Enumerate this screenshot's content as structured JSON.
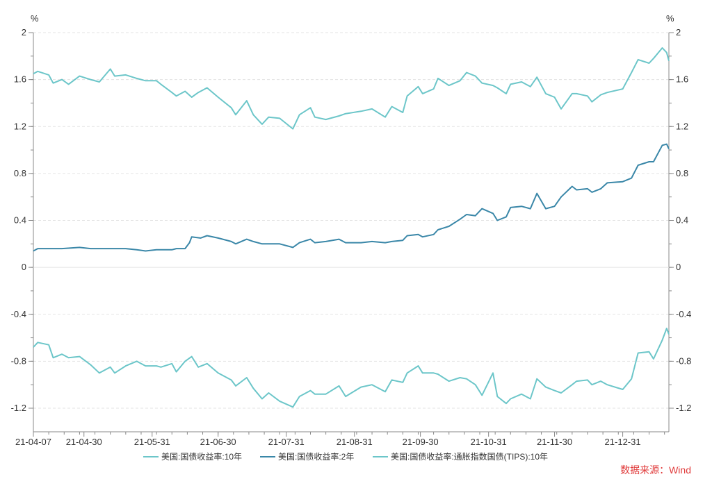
{
  "chart_data": {
    "type": "line",
    "y_unit_left": "%",
    "y_unit_right": "%",
    "ylim": [
      -1.3,
      2.0
    ],
    "y_ticks": [
      "2",
      "1.6",
      "1.2",
      "0.8",
      "0.4",
      "0",
      "-0.4",
      "-0.8",
      "-1.2"
    ],
    "y_tick_values": [
      2,
      1.6,
      1.2,
      0.8,
      0.4,
      0,
      -0.4,
      -0.8,
      -1.2
    ],
    "x_ticks": [
      "21-04-07",
      "21-04-30",
      "21-05-31",
      "21-06-30",
      "21-07-31",
      "21-08-31",
      "21-09-30",
      "21-10-31",
      "21-11-30",
      "21-12-31"
    ],
    "xlim": [
      "2021-04-07",
      "2022-01-21"
    ],
    "grid": true,
    "legend_position": "bottom",
    "series": [
      {
        "name": "美国:国债收益率:10年",
        "color": "#6cc6c9",
        "points": [
          [
            "2021-04-07",
            1.65
          ],
          [
            "2021-04-09",
            1.67
          ],
          [
            "2021-04-14",
            1.64
          ],
          [
            "2021-04-16",
            1.57
          ],
          [
            "2021-04-20",
            1.6
          ],
          [
            "2021-04-23",
            1.56
          ],
          [
            "2021-04-28",
            1.63
          ],
          [
            "2021-05-03",
            1.6
          ],
          [
            "2021-05-07",
            1.58
          ],
          [
            "2021-05-12",
            1.69
          ],
          [
            "2021-05-14",
            1.63
          ],
          [
            "2021-05-19",
            1.64
          ],
          [
            "2021-05-24",
            1.61
          ],
          [
            "2021-05-28",
            1.59
          ],
          [
            "2021-06-02",
            1.59
          ],
          [
            "2021-06-04",
            1.56
          ],
          [
            "2021-06-09",
            1.49
          ],
          [
            "2021-06-11",
            1.46
          ],
          [
            "2021-06-15",
            1.5
          ],
          [
            "2021-06-18",
            1.45
          ],
          [
            "2021-06-21",
            1.49
          ],
          [
            "2021-06-25",
            1.53
          ],
          [
            "2021-06-30",
            1.45
          ],
          [
            "2021-07-06",
            1.36
          ],
          [
            "2021-07-08",
            1.3
          ],
          [
            "2021-07-13",
            1.42
          ],
          [
            "2021-07-16",
            1.3
          ],
          [
            "2021-07-20",
            1.22
          ],
          [
            "2021-07-23",
            1.28
          ],
          [
            "2021-07-28",
            1.27
          ],
          [
            "2021-08-03",
            1.18
          ],
          [
            "2021-08-06",
            1.3
          ],
          [
            "2021-08-11",
            1.36
          ],
          [
            "2021-08-13",
            1.28
          ],
          [
            "2021-08-18",
            1.26
          ],
          [
            "2021-08-24",
            1.29
          ],
          [
            "2021-08-27",
            1.31
          ],
          [
            "2021-09-03",
            1.33
          ],
          [
            "2021-09-08",
            1.35
          ],
          [
            "2021-09-14",
            1.28
          ],
          [
            "2021-09-17",
            1.37
          ],
          [
            "2021-09-22",
            1.32
          ],
          [
            "2021-09-24",
            1.46
          ],
          [
            "2021-09-29",
            1.54
          ],
          [
            "2021-10-01",
            1.48
          ],
          [
            "2021-10-06",
            1.52
          ],
          [
            "2021-10-08",
            1.61
          ],
          [
            "2021-10-13",
            1.55
          ],
          [
            "2021-10-18",
            1.59
          ],
          [
            "2021-10-21",
            1.66
          ],
          [
            "2021-10-25",
            1.63
          ],
          [
            "2021-10-28",
            1.57
          ],
          [
            "2021-11-02",
            1.55
          ],
          [
            "2021-11-04",
            1.53
          ],
          [
            "2021-11-08",
            1.48
          ],
          [
            "2021-11-10",
            1.56
          ],
          [
            "2021-11-15",
            1.58
          ],
          [
            "2021-11-19",
            1.54
          ],
          [
            "2021-11-22",
            1.62
          ],
          [
            "2021-11-26",
            1.48
          ],
          [
            "2021-11-30",
            1.45
          ],
          [
            "2021-12-03",
            1.35
          ],
          [
            "2021-12-08",
            1.48
          ],
          [
            "2021-12-10",
            1.48
          ],
          [
            "2021-12-15",
            1.46
          ],
          [
            "2021-12-17",
            1.41
          ],
          [
            "2021-12-21",
            1.47
          ],
          [
            "2021-12-24",
            1.49
          ],
          [
            "2021-12-31",
            1.52
          ],
          [
            "2022-01-04",
            1.66
          ],
          [
            "2022-01-07",
            1.77
          ],
          [
            "2022-01-12",
            1.74
          ],
          [
            "2022-01-14",
            1.78
          ],
          [
            "2022-01-18",
            1.87
          ],
          [
            "2022-01-20",
            1.83
          ],
          [
            "2022-01-21",
            1.76
          ]
        ]
      },
      {
        "name": "美国:国债收益率:2年",
        "color": "#3a87a8",
        "points": [
          [
            "2021-04-07",
            0.14
          ],
          [
            "2021-04-09",
            0.16
          ],
          [
            "2021-04-14",
            0.16
          ],
          [
            "2021-04-20",
            0.16
          ],
          [
            "2021-04-28",
            0.17
          ],
          [
            "2021-05-03",
            0.16
          ],
          [
            "2021-05-07",
            0.16
          ],
          [
            "2021-05-12",
            0.16
          ],
          [
            "2021-05-19",
            0.16
          ],
          [
            "2021-05-24",
            0.15
          ],
          [
            "2021-05-28",
            0.14
          ],
          [
            "2021-06-02",
            0.15
          ],
          [
            "2021-06-09",
            0.15
          ],
          [
            "2021-06-11",
            0.16
          ],
          [
            "2021-06-15",
            0.16
          ],
          [
            "2021-06-17",
            0.21
          ],
          [
            "2021-06-18",
            0.26
          ],
          [
            "2021-06-22",
            0.25
          ],
          [
            "2021-06-25",
            0.27
          ],
          [
            "2021-06-30",
            0.25
          ],
          [
            "2021-07-06",
            0.22
          ],
          [
            "2021-07-08",
            0.2
          ],
          [
            "2021-07-13",
            0.24
          ],
          [
            "2021-07-16",
            0.22
          ],
          [
            "2021-07-20",
            0.2
          ],
          [
            "2021-07-23",
            0.2
          ],
          [
            "2021-07-28",
            0.2
          ],
          [
            "2021-08-03",
            0.17
          ],
          [
            "2021-08-06",
            0.21
          ],
          [
            "2021-08-11",
            0.24
          ],
          [
            "2021-08-13",
            0.21
          ],
          [
            "2021-08-18",
            0.22
          ],
          [
            "2021-08-24",
            0.24
          ],
          [
            "2021-08-27",
            0.21
          ],
          [
            "2021-09-03",
            0.21
          ],
          [
            "2021-09-08",
            0.22
          ],
          [
            "2021-09-14",
            0.21
          ],
          [
            "2021-09-17",
            0.22
          ],
          [
            "2021-09-22",
            0.23
          ],
          [
            "2021-09-24",
            0.27
          ],
          [
            "2021-09-29",
            0.28
          ],
          [
            "2021-10-01",
            0.26
          ],
          [
            "2021-10-06",
            0.28
          ],
          [
            "2021-10-08",
            0.32
          ],
          [
            "2021-10-13",
            0.35
          ],
          [
            "2021-10-18",
            0.41
          ],
          [
            "2021-10-21",
            0.45
          ],
          [
            "2021-10-25",
            0.44
          ],
          [
            "2021-10-28",
            0.5
          ],
          [
            "2021-11-02",
            0.46
          ],
          [
            "2021-11-04",
            0.4
          ],
          [
            "2021-11-08",
            0.43
          ],
          [
            "2021-11-10",
            0.51
          ],
          [
            "2021-11-15",
            0.52
          ],
          [
            "2021-11-19",
            0.5
          ],
          [
            "2021-11-22",
            0.63
          ],
          [
            "2021-11-26",
            0.5
          ],
          [
            "2021-11-30",
            0.52
          ],
          [
            "2021-12-03",
            0.6
          ],
          [
            "2021-12-08",
            0.69
          ],
          [
            "2021-12-10",
            0.66
          ],
          [
            "2021-12-15",
            0.67
          ],
          [
            "2021-12-17",
            0.64
          ],
          [
            "2021-12-21",
            0.67
          ],
          [
            "2021-12-24",
            0.72
          ],
          [
            "2021-12-31",
            0.73
          ],
          [
            "2022-01-04",
            0.76
          ],
          [
            "2022-01-07",
            0.87
          ],
          [
            "2022-01-12",
            0.9
          ],
          [
            "2022-01-14",
            0.9
          ],
          [
            "2022-01-18",
            1.04
          ],
          [
            "2022-01-20",
            1.05
          ],
          [
            "2022-01-21",
            1.01
          ]
        ]
      },
      {
        "name": "美国:国债收益率:通胀指数国债(TIPS):10年",
        "color": "#6cc6c9",
        "points": [
          [
            "2021-04-07",
            -0.68
          ],
          [
            "2021-04-09",
            -0.64
          ],
          [
            "2021-04-14",
            -0.66
          ],
          [
            "2021-04-16",
            -0.77
          ],
          [
            "2021-04-20",
            -0.74
          ],
          [
            "2021-04-23",
            -0.77
          ],
          [
            "2021-04-28",
            -0.76
          ],
          [
            "2021-05-03",
            -0.83
          ],
          [
            "2021-05-07",
            -0.9
          ],
          [
            "2021-05-12",
            -0.85
          ],
          [
            "2021-05-14",
            -0.9
          ],
          [
            "2021-05-19",
            -0.84
          ],
          [
            "2021-05-24",
            -0.8
          ],
          [
            "2021-05-28",
            -0.84
          ],
          [
            "2021-06-02",
            -0.84
          ],
          [
            "2021-06-04",
            -0.85
          ],
          [
            "2021-06-09",
            -0.82
          ],
          [
            "2021-06-11",
            -0.89
          ],
          [
            "2021-06-15",
            -0.8
          ],
          [
            "2021-06-18",
            -0.76
          ],
          [
            "2021-06-21",
            -0.85
          ],
          [
            "2021-06-25",
            -0.82
          ],
          [
            "2021-06-30",
            -0.9
          ],
          [
            "2021-07-06",
            -0.96
          ],
          [
            "2021-07-08",
            -1.01
          ],
          [
            "2021-07-13",
            -0.94
          ],
          [
            "2021-07-16",
            -1.03
          ],
          [
            "2021-07-20",
            -1.12
          ],
          [
            "2021-07-23",
            -1.07
          ],
          [
            "2021-07-28",
            -1.14
          ],
          [
            "2021-08-03",
            -1.19
          ],
          [
            "2021-08-06",
            -1.1
          ],
          [
            "2021-08-11",
            -1.05
          ],
          [
            "2021-08-13",
            -1.08
          ],
          [
            "2021-08-18",
            -1.08
          ],
          [
            "2021-08-24",
            -1.01
          ],
          [
            "2021-08-27",
            -1.1
          ],
          [
            "2021-09-03",
            -1.02
          ],
          [
            "2021-09-08",
            -1.0
          ],
          [
            "2021-09-14",
            -1.06
          ],
          [
            "2021-09-17",
            -0.96
          ],
          [
            "2021-09-22",
            -0.98
          ],
          [
            "2021-09-24",
            -0.9
          ],
          [
            "2021-09-29",
            -0.84
          ],
          [
            "2021-10-01",
            -0.9
          ],
          [
            "2021-10-06",
            -0.9
          ],
          [
            "2021-10-08",
            -0.91
          ],
          [
            "2021-10-13",
            -0.97
          ],
          [
            "2021-10-18",
            -0.94
          ],
          [
            "2021-10-21",
            -0.95
          ],
          [
            "2021-10-25",
            -1.0
          ],
          [
            "2021-10-28",
            -1.09
          ],
          [
            "2021-11-02",
            -0.9
          ],
          [
            "2021-11-04",
            -1.1
          ],
          [
            "2021-11-08",
            -1.16
          ],
          [
            "2021-11-10",
            -1.12
          ],
          [
            "2021-11-15",
            -1.08
          ],
          [
            "2021-11-19",
            -1.12
          ],
          [
            "2021-11-22",
            -0.95
          ],
          [
            "2021-11-26",
            -1.02
          ],
          [
            "2021-11-30",
            -1.05
          ],
          [
            "2021-12-03",
            -1.07
          ],
          [
            "2021-12-08",
            -1.0
          ],
          [
            "2021-12-10",
            -0.97
          ],
          [
            "2021-12-15",
            -0.96
          ],
          [
            "2021-12-17",
            -1.0
          ],
          [
            "2021-12-21",
            -0.97
          ],
          [
            "2021-12-24",
            -1.0
          ],
          [
            "2021-12-31",
            -1.04
          ],
          [
            "2022-01-04",
            -0.95
          ],
          [
            "2022-01-07",
            -0.73
          ],
          [
            "2022-01-12",
            -0.72
          ],
          [
            "2022-01-14",
            -0.78
          ],
          [
            "2022-01-18",
            -0.62
          ],
          [
            "2022-01-20",
            -0.52
          ],
          [
            "2022-01-21",
            -0.57
          ]
        ]
      }
    ]
  },
  "source_note": "数据来源：Wind"
}
